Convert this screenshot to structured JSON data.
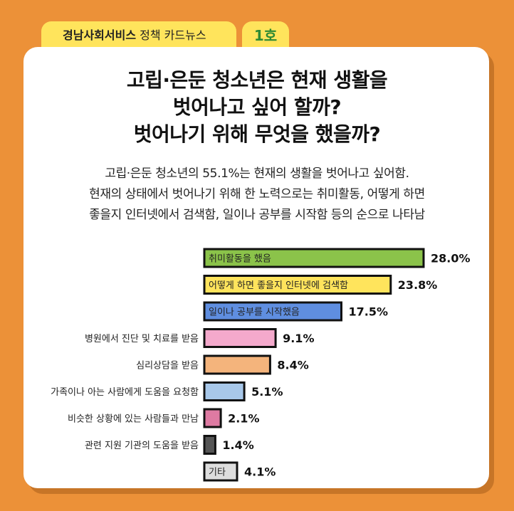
{
  "header": {
    "series_name": "경남사회서비스",
    "series_type": "정책 카드뉴스",
    "issue": "1호"
  },
  "title_lines": [
    "고립·은둔 청소년은 현재 생활을",
    "벗어나고 싶어 할까?",
    "벗어나기 위해 무엇을 했을까?"
  ],
  "summary_lines": [
    "고립·은둔 청소년의 55.1%는 현재의 생활을 벗어나고 싶어함.",
    "현재의 상태에서 벗어나기 위해 한 노력으로는 취미활동, 어떻게 하면",
    "좋을지 인터넷에서 검색함, 일이나 공부를 시작함 등의 순으로 나타남"
  ],
  "colors": {
    "background": "#ec9138",
    "tab": "#ffe45c",
    "issue_text": "#2f8a34"
  },
  "chart_data": {
    "type": "bar",
    "orientation": "horizontal",
    "unit": "%",
    "xlim": [
      0,
      28
    ],
    "categories": [
      "취미활동을 했음",
      "어떻게 하면 좋을지 인터넷에 검색함",
      "일이나 공부를 시작했음",
      "병원에서 진단 및 치료를 받음",
      "심리상담을 받음",
      "가족이나 아는 사람에게 도움을 요청함",
      "비슷한 상황에 있는 사람들과 만남",
      "관련 지원 기관의 도움을 받음",
      "기타"
    ],
    "values": [
      28.0,
      23.8,
      17.5,
      9.1,
      8.4,
      5.1,
      2.1,
      1.4,
      4.1
    ],
    "value_labels": [
      "28.0%",
      "23.8%",
      "17.5%",
      "9.1%",
      "8.4%",
      "5.1%",
      "2.1%",
      "1.4%",
      "4.1%"
    ],
    "bar_colors": [
      "#8bc34a",
      "#ffe45c",
      "#5f8ee0",
      "#f4a9cc",
      "#f4b47c",
      "#a8c8ea",
      "#de7aa2",
      "#555555",
      "#dddddd"
    ],
    "label_inside_bar": [
      true,
      true,
      true,
      false,
      false,
      false,
      false,
      false,
      true
    ],
    "grid": false,
    "legend": "none"
  }
}
